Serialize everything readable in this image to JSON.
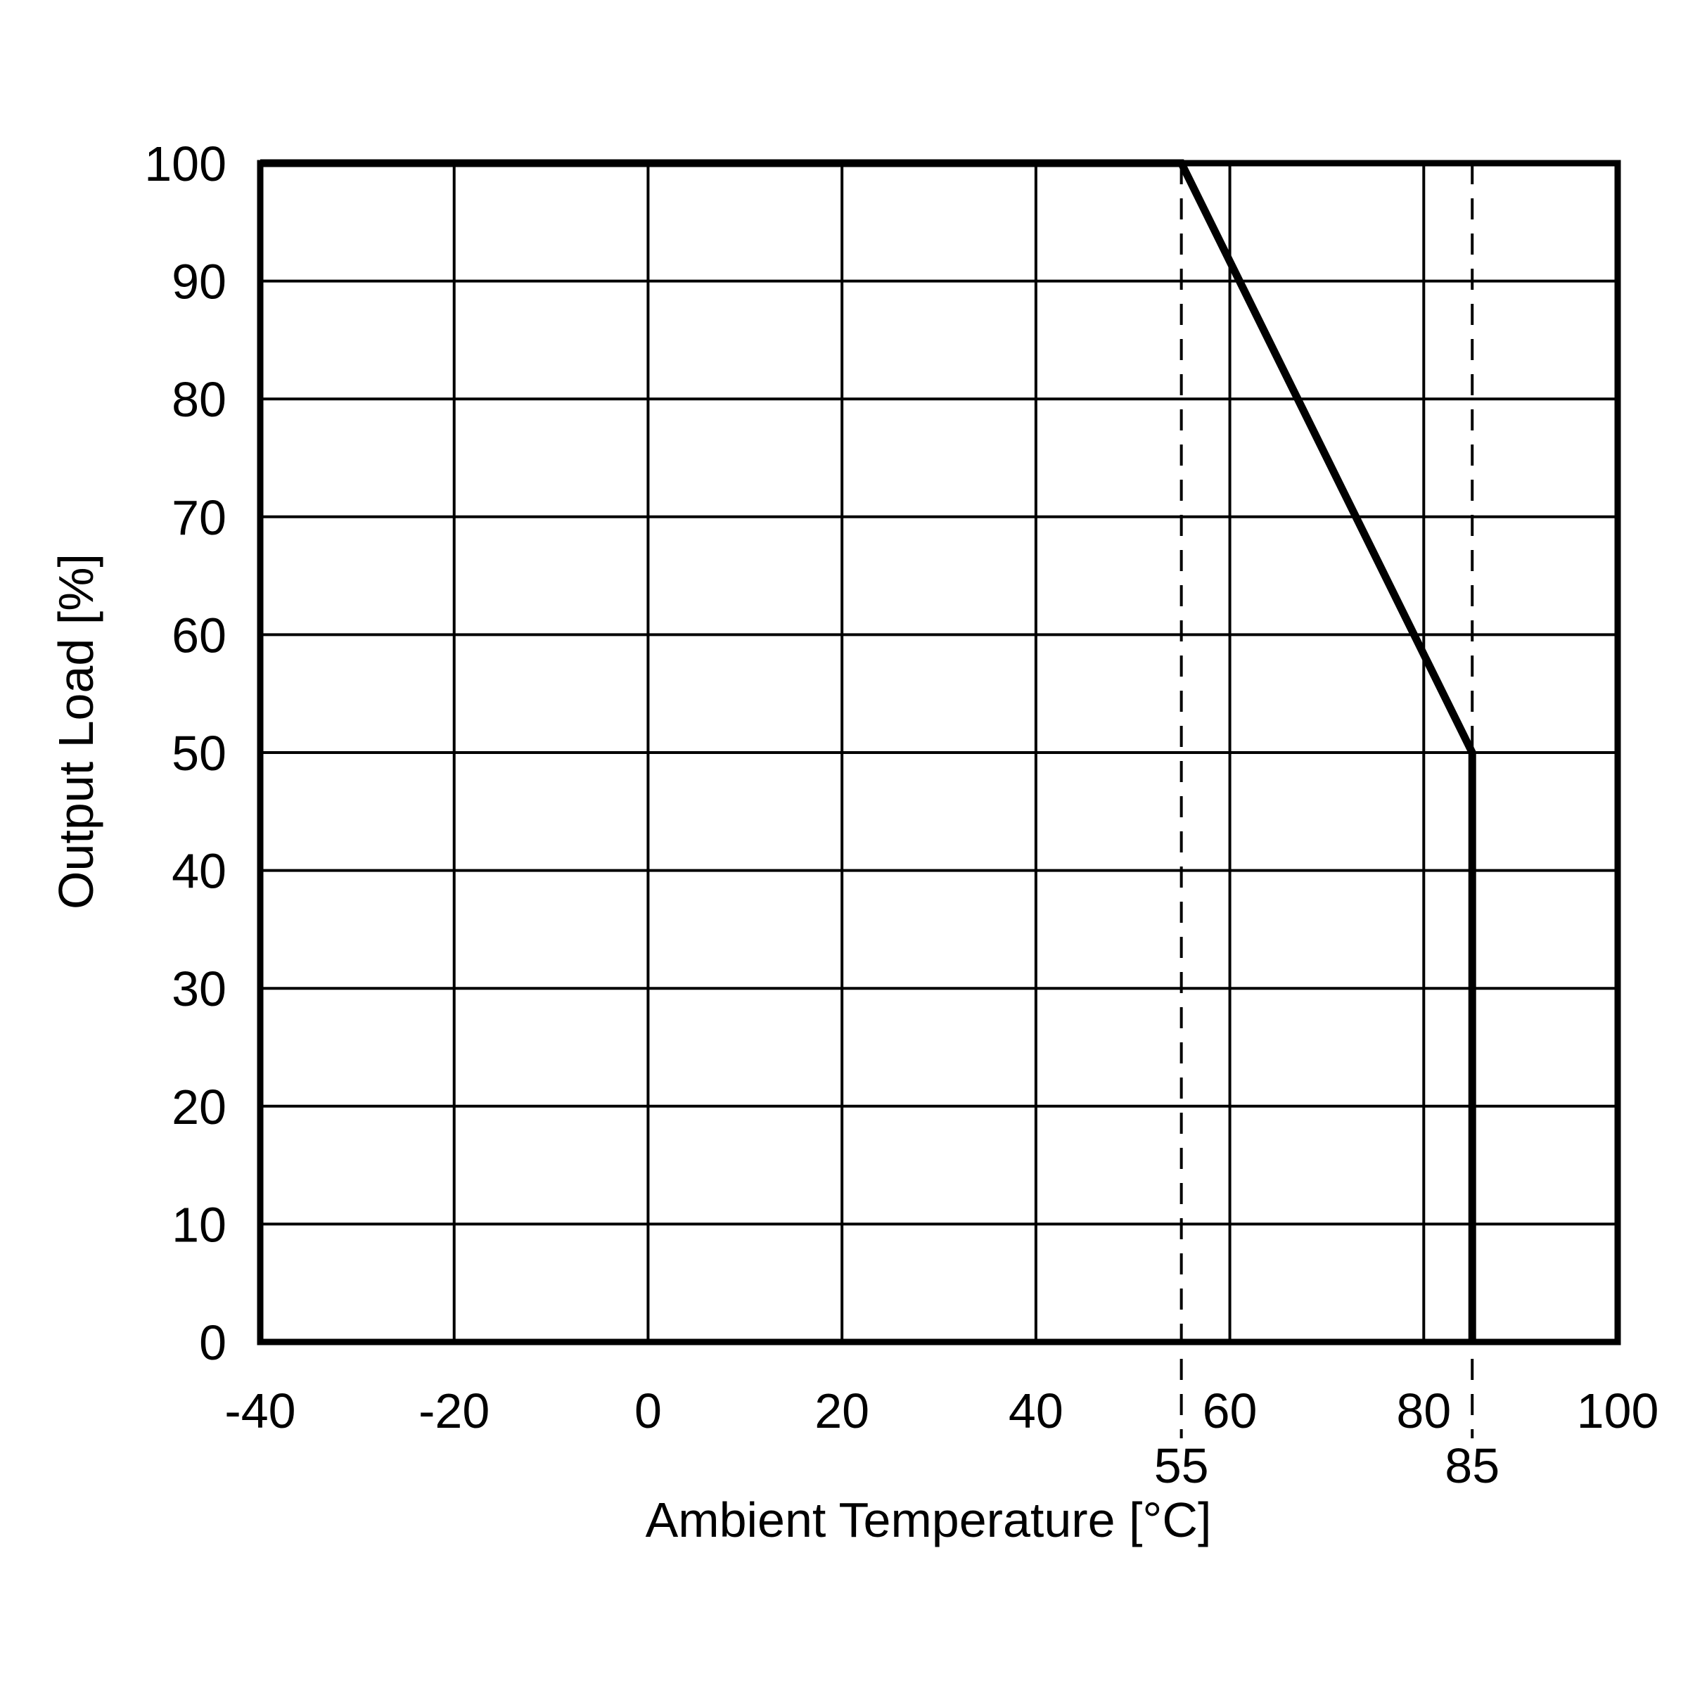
{
  "chart_data": {
    "type": "line",
    "title": "",
    "xlabel": "Ambient Temperature [°C]",
    "ylabel": "Output Load [%]",
    "xlim": [
      -40,
      100
    ],
    "ylim": [
      0,
      100
    ],
    "x_ticks": [
      "-40",
      "-20",
      "0",
      "20",
      "40",
      "60",
      "80",
      "100"
    ],
    "x_tick_values": [
      -40,
      -20,
      0,
      20,
      40,
      60,
      80,
      100
    ],
    "y_ticks": [
      "0",
      "10",
      "20",
      "30",
      "40",
      "50",
      "60",
      "70",
      "80",
      "90",
      "100"
    ],
    "y_tick_values": [
      0,
      10,
      20,
      30,
      40,
      50,
      60,
      70,
      80,
      90,
      100
    ],
    "grid": true,
    "series": [
      {
        "x": [
          -40,
          55,
          85,
          85
        ],
        "y": [
          100,
          100,
          50,
          0
        ]
      }
    ],
    "annotations": [
      {
        "text": "55",
        "x": 55,
        "style": "dashed-vertical"
      },
      {
        "text": "85",
        "x": 85,
        "style": "dashed-vertical"
      }
    ]
  }
}
